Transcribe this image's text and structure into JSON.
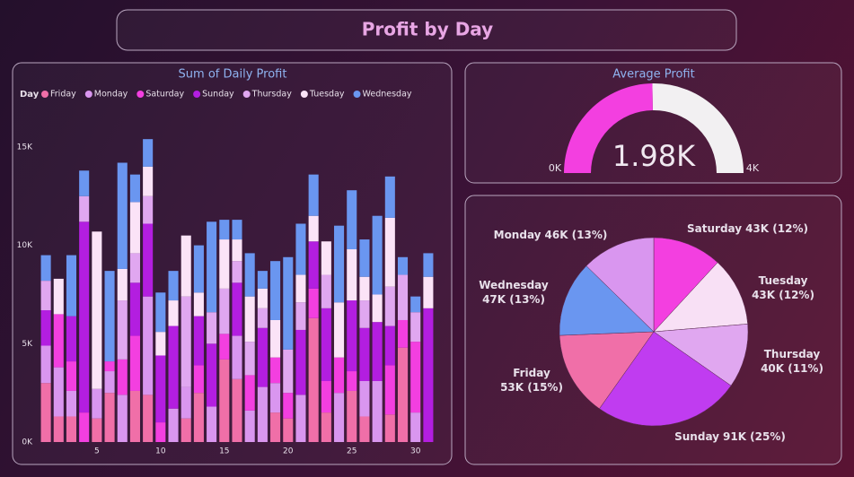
{
  "header": {
    "title": "Profit by Day"
  },
  "chart_data": [
    {
      "type": "bar",
      "stacked": true,
      "title": "Sum of Daily Profit",
      "legend_title": "Day",
      "legend": "top-left",
      "x": [
        1,
        2,
        3,
        4,
        5,
        6,
        7,
        8,
        9,
        10,
        11,
        12,
        13,
        14,
        15,
        16,
        17,
        18,
        19,
        20,
        21,
        22,
        23,
        24,
        25,
        26,
        27,
        28,
        29,
        30,
        31
      ],
      "xlim": [
        0.5,
        31.5
      ],
      "xticks": [
        5,
        10,
        15,
        20,
        25,
        30
      ],
      "ylim": [
        0,
        16
      ],
      "yticks": [
        {
          "value": 0,
          "label": "0K"
        },
        {
          "value": 5,
          "label": "5K"
        },
        {
          "value": 10,
          "label": "10K"
        },
        {
          "value": 15,
          "label": "15K"
        }
      ],
      "series": [
        {
          "name": "Friday",
          "color": "#f06fa8",
          "values": [
            3.0,
            1.3,
            1.3,
            0,
            1.2,
            2.5,
            0,
            2.6,
            2.4,
            0,
            0,
            1.2,
            2.5,
            0,
            4.2,
            3.2,
            0,
            0,
            1.5,
            1.2,
            0,
            6.3,
            1.5,
            0,
            2.6,
            1.3,
            0,
            1.4,
            4.8,
            0,
            0
          ]
        },
        {
          "name": "Monday",
          "color": "#d996ef",
          "values": [
            1.9,
            2.5,
            1.3,
            0,
            1.5,
            1.1,
            2.4,
            0,
            5.0,
            0,
            1.7,
            1.6,
            0,
            1.8,
            0,
            2.2,
            1.6,
            2.8,
            1.5,
            0,
            2.4,
            0,
            0,
            2.5,
            0,
            1.8,
            3.1,
            0,
            0,
            1.5,
            0
          ]
        },
        {
          "name": "Saturday",
          "color": "#f33fe0",
          "values": [
            0,
            2.7,
            1.5,
            1.5,
            0,
            0.5,
            1.8,
            2.8,
            0,
            1.0,
            0,
            0,
            1.4,
            0,
            1.3,
            0,
            1.8,
            0,
            1.3,
            1.3,
            0,
            1.5,
            1.6,
            1.8,
            1.0,
            0,
            0,
            2.5,
            1.4,
            3.6,
            0
          ]
        },
        {
          "name": "Sunday",
          "color": "#b31ee0",
          "values": [
            1.8,
            0,
            2.3,
            9.7,
            0,
            0,
            0,
            2.7,
            3.7,
            3.4,
            4.2,
            0,
            2.5,
            3.2,
            0,
            2.7,
            0,
            3.0,
            0,
            0,
            3.3,
            2.4,
            3.7,
            0,
            3.6,
            2.7,
            3.0,
            2.0,
            0,
            0,
            6.8
          ]
        },
        {
          "name": "Thursday",
          "color": "#e0a7f0",
          "values": [
            1.5,
            0,
            0,
            1.3,
            0,
            0,
            3.0,
            1.5,
            1.4,
            0,
            0,
            4.6,
            0,
            1.6,
            2.3,
            1.1,
            1.7,
            1.0,
            0,
            2.2,
            1.4,
            0,
            1.7,
            0,
            0,
            1.4,
            0,
            2.0,
            2.3,
            1.5,
            0
          ]
        },
        {
          "name": "Tuesday",
          "color": "#fbe3f7",
          "values": [
            0,
            1.8,
            0,
            0,
            8.0,
            0,
            1.6,
            2.6,
            1.5,
            1.2,
            1.3,
            3.1,
            1.2,
            0,
            2.5,
            1.1,
            2.3,
            1.0,
            1.9,
            0,
            1.4,
            1.3,
            1.7,
            2.8,
            2.6,
            1.2,
            1.4,
            3.5,
            0,
            0,
            1.6
          ]
        },
        {
          "name": "Wednesday",
          "color": "#6a96f0",
          "values": [
            1.3,
            0,
            3.1,
            1.3,
            0,
            4.6,
            5.4,
            1.4,
            1.4,
            2.0,
            1.5,
            0,
            2.4,
            4.6,
            1.0,
            1.0,
            2.2,
            0.9,
            3.0,
            4.7,
            2.6,
            2.1,
            0,
            3.9,
            3.0,
            1.9,
            4.0,
            2.1,
            0.9,
            0.8,
            1.2
          ]
        }
      ]
    },
    {
      "type": "gauge",
      "title": "Average Profit",
      "value": 1.98,
      "value_label": "1.98K",
      "color": "#f33fe0",
      "ylim": [
        0,
        4
      ],
      "yticks": [
        {
          "value": 0,
          "label": "0K"
        },
        {
          "value": 4,
          "label": "4K"
        }
      ]
    },
    {
      "type": "pie",
      "categories": [
        "Saturday",
        "Tuesday",
        "Thursday",
        "Sunday",
        "Friday",
        "Wednesday",
        "Monday"
      ],
      "values": [
        43,
        43,
        40,
        91,
        53,
        47,
        46
      ],
      "value_labels": [
        "43K (12%)",
        "43K (12%)",
        "40K (11%)",
        "91K (25%)",
        "53K (15%)",
        "47K (13%)",
        "46K (13%)"
      ],
      "colors": [
        "#f33fe0",
        "#f8e0f5",
        "#e0a7f0",
        "#c03cf0",
        "#f06fa8",
        "#6a96f0",
        "#d996ef"
      ]
    }
  ]
}
